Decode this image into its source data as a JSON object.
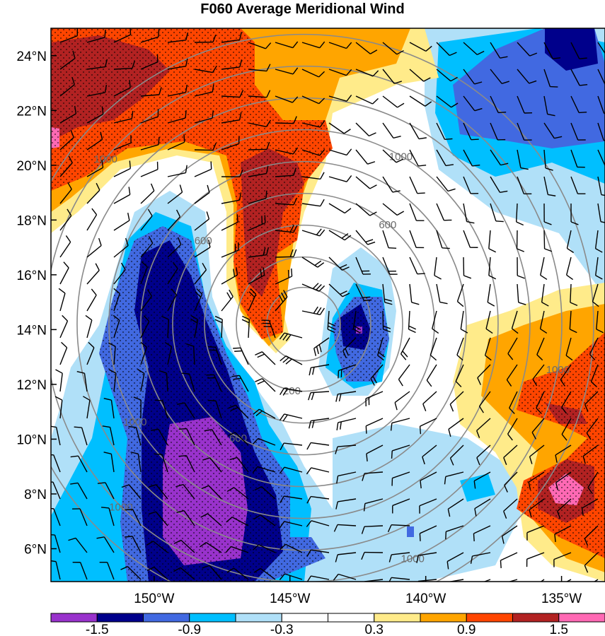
{
  "chart_data": {
    "type": "heatmap",
    "title": "F060 Average Meridional Wind",
    "x_ticks": [
      "150°W",
      "145°W",
      "140°W",
      "135°W"
    ],
    "y_ticks": [
      "24°N",
      "22°N",
      "20°N",
      "18°N",
      "16°N",
      "14°N",
      "12°N",
      "10°N",
      "8°N",
      "6°N"
    ],
    "x_range_lon": [
      -153.8,
      -133.4
    ],
    "y_range_lat": [
      4.8,
      25.0
    ],
    "colorbar": {
      "labels": [
        "-1.5",
        "-0.9",
        "-0.3",
        "0.3",
        "0.9",
        "1.5"
      ],
      "colors": [
        "#9932cc",
        "#00008b",
        "#4169e1",
        "#00bfff",
        "#b0e0f8",
        "#ffffff",
        "#ffffff",
        "#ffeb8a",
        "#ffa500",
        "#ff4500",
        "#b22222",
        "#ff69b4"
      ]
    },
    "range_rings": [
      "200",
      "600",
      "1000"
    ],
    "center": {
      "lon": -144.5,
      "lat": 14.2
    },
    "stippling": "significance"
  }
}
